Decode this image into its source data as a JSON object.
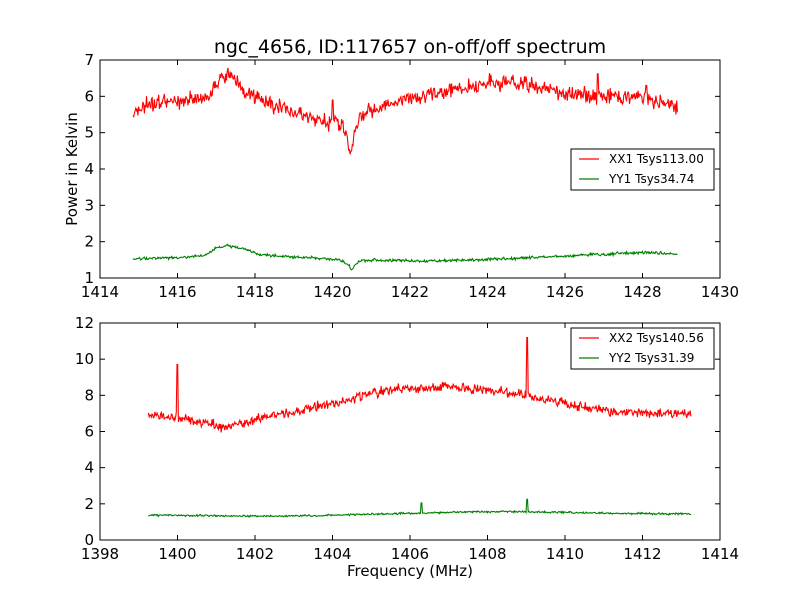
{
  "title": "ngc_4656, ID:117657 on-off/off spectrum",
  "chart_data": [
    {
      "type": "line",
      "xlabel": "",
      "ylabel": "Power in Kelvin",
      "xlim": [
        1414,
        1430
      ],
      "ylim": [
        1,
        7
      ],
      "xticks": [
        "1414",
        "1416",
        "1418",
        "1420",
        "1422",
        "1424",
        "1426",
        "1428",
        "1430"
      ],
      "yticks": [
        "1",
        "2",
        "3",
        "4",
        "5",
        "6",
        "7"
      ],
      "legend_position": "center-right",
      "series": [
        {
          "name": "XX1 Tsys113.00",
          "color": "#ff0000",
          "noise": 0.16,
          "points": [
            [
              1414.85,
              5.6
            ],
            [
              1415.3,
              5.75
            ],
            [
              1415.8,
              5.85
            ],
            [
              1416.3,
              5.95
            ],
            [
              1416.7,
              5.9
            ],
            [
              1416.9,
              6.1
            ],
            [
              1417.1,
              6.45
            ],
            [
              1417.3,
              6.6
            ],
            [
              1417.6,
              6.3
            ],
            [
              1418.0,
              5.95
            ],
            [
              1418.4,
              5.8
            ],
            [
              1418.8,
              5.65
            ],
            [
              1419.2,
              5.5
            ],
            [
              1419.6,
              5.35
            ],
            [
              1419.9,
              5.3
            ],
            [
              1420.1,
              5.3
            ],
            [
              1420.3,
              5.1
            ],
            [
              1420.4,
              4.75
            ],
            [
              1420.45,
              4.4
            ],
            [
              1420.55,
              4.8
            ],
            [
              1420.7,
              5.45
            ],
            [
              1420.9,
              5.55
            ],
            [
              1421.3,
              5.7
            ],
            [
              1421.7,
              5.9
            ],
            [
              1422.2,
              6.0
            ],
            [
              1422.7,
              6.1
            ],
            [
              1423.2,
              6.2
            ],
            [
              1423.7,
              6.3
            ],
            [
              1424.2,
              6.4
            ],
            [
              1424.7,
              6.4
            ],
            [
              1425.2,
              6.3
            ],
            [
              1425.7,
              6.15
            ],
            [
              1426.2,
              6.05
            ],
            [
              1426.7,
              6.0
            ],
            [
              1427.2,
              6.0
            ],
            [
              1427.7,
              6.0
            ],
            [
              1428.2,
              5.95
            ],
            [
              1428.6,
              5.85
            ],
            [
              1428.9,
              5.7
            ]
          ],
          "spikes": [
            [
              1420.0,
              5.9
            ],
            [
              1420.3,
              5.0
            ],
            [
              1426.85,
              6.62
            ],
            [
              1428.1,
              6.3
            ]
          ]
        },
        {
          "name": "YY1 Tsys34.74",
          "color": "#008000",
          "noise": 0.03,
          "points": [
            [
              1414.85,
              1.52
            ],
            [
              1415.5,
              1.55
            ],
            [
              1416.2,
              1.57
            ],
            [
              1416.7,
              1.62
            ],
            [
              1417.0,
              1.82
            ],
            [
              1417.3,
              1.9
            ],
            [
              1417.7,
              1.8
            ],
            [
              1418.1,
              1.65
            ],
            [
              1418.6,
              1.6
            ],
            [
              1419.2,
              1.57
            ],
            [
              1419.8,
              1.53
            ],
            [
              1420.2,
              1.5
            ],
            [
              1420.4,
              1.38
            ],
            [
              1420.5,
              1.22
            ],
            [
              1420.6,
              1.4
            ],
            [
              1420.8,
              1.5
            ],
            [
              1421.5,
              1.48
            ],
            [
              1422.3,
              1.47
            ],
            [
              1423.0,
              1.48
            ],
            [
              1423.8,
              1.5
            ],
            [
              1424.5,
              1.53
            ],
            [
              1425.2,
              1.57
            ],
            [
              1426.0,
              1.6
            ],
            [
              1426.8,
              1.65
            ],
            [
              1427.5,
              1.68
            ],
            [
              1428.2,
              1.7
            ],
            [
              1428.9,
              1.65
            ]
          ],
          "spikes": []
        }
      ]
    },
    {
      "type": "line",
      "xlabel": "Frequency (MHz)",
      "ylabel": "",
      "xlim": [
        1398,
        1414
      ],
      "ylim": [
        0,
        12
      ],
      "xticks": [
        "1398",
        "1400",
        "1402",
        "1404",
        "1406",
        "1408",
        "1410",
        "1412",
        "1414"
      ],
      "yticks": [
        "0",
        "2",
        "4",
        "6",
        "8",
        "10",
        "12"
      ],
      "legend_position": "top-right",
      "series": [
        {
          "name": "XX2 Tsys140.56",
          "color": "#ff0000",
          "noise": 0.2,
          "points": [
            [
              1399.25,
              6.9
            ],
            [
              1399.7,
              6.8
            ],
            [
              1400.2,
              6.7
            ],
            [
              1400.7,
              6.45
            ],
            [
              1401.2,
              6.3
            ],
            [
              1401.7,
              6.45
            ],
            [
              1402.2,
              6.75
            ],
            [
              1402.7,
              6.95
            ],
            [
              1403.2,
              7.15
            ],
            [
              1403.7,
              7.4
            ],
            [
              1404.2,
              7.65
            ],
            [
              1404.7,
              7.95
            ],
            [
              1405.2,
              8.2
            ],
            [
              1405.7,
              8.35
            ],
            [
              1406.2,
              8.4
            ],
            [
              1406.7,
              8.45
            ],
            [
              1407.2,
              8.45
            ],
            [
              1407.7,
              8.35
            ],
            [
              1408.2,
              8.25
            ],
            [
              1408.7,
              8.1
            ],
            [
              1409.2,
              7.95
            ],
            [
              1409.7,
              7.7
            ],
            [
              1410.2,
              7.45
            ],
            [
              1410.7,
              7.25
            ],
            [
              1411.2,
              7.1
            ],
            [
              1411.7,
              7.05
            ],
            [
              1412.2,
              7.0
            ],
            [
              1412.7,
              6.95
            ],
            [
              1413.25,
              7.0
            ]
          ],
          "spikes": [
            [
              1400.0,
              9.7
            ],
            [
              1409.02,
              11.2
            ]
          ]
        },
        {
          "name": "YY2 Tsys31.39",
          "color": "#008000",
          "noise": 0.04,
          "points": [
            [
              1399.25,
              1.38
            ],
            [
              1400.5,
              1.35
            ],
            [
              1401.5,
              1.33
            ],
            [
              1402.5,
              1.32
            ],
            [
              1403.5,
              1.35
            ],
            [
              1404.5,
              1.4
            ],
            [
              1405.5,
              1.45
            ],
            [
              1406.5,
              1.5
            ],
            [
              1407.5,
              1.55
            ],
            [
              1408.5,
              1.57
            ],
            [
              1409.5,
              1.55
            ],
            [
              1410.5,
              1.5
            ],
            [
              1411.5,
              1.47
            ],
            [
              1412.5,
              1.45
            ],
            [
              1413.25,
              1.45
            ]
          ],
          "spikes": [
            [
              1406.3,
              2.05
            ],
            [
              1409.02,
              2.25
            ]
          ]
        }
      ]
    }
  ]
}
